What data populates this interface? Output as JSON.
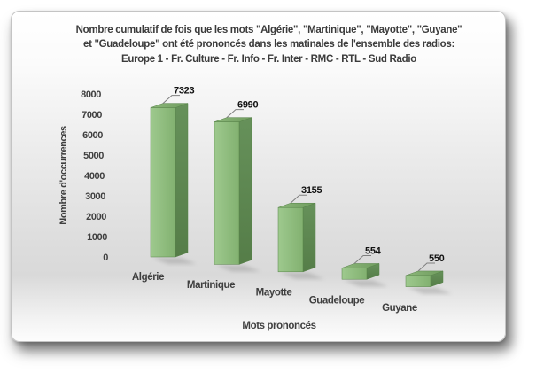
{
  "chart_data": {
    "type": "bar",
    "variant": "3d-column",
    "title_lines": [
      "Nombre cumulatif de fois que les mots \"Algérie\", \"Martinique\", \"Mayotte\", \"Guyane\"",
      "et \"Guadeloupe\" ont été prononcés dans les matinales de l'ensemble des radios:",
      "Europe 1 - Fr. Culture - Fr. Info - Fr. Inter - RMC - RTL - Sud Radio"
    ],
    "categories": [
      "Algérie",
      "Martinique",
      "Mayotte",
      "Guadeloupe",
      "Guyane"
    ],
    "values": [
      7323,
      6990,
      3155,
      554,
      550
    ],
    "xlabel": "Mots prononcés",
    "ylabel": "Nombre d'occurrences",
    "ylim": [
      0,
      8000
    ],
    "yticks": [
      0,
      1000,
      2000,
      3000,
      4000,
      5000,
      6000,
      7000,
      8000
    ],
    "grid": false,
    "legend": false,
    "colors": {
      "bar_front_light": "#9ec98e",
      "bar_front_dark": "#82b170",
      "bar_top_light": "#8cb77a",
      "bar_top_dark": "#6f9c5e",
      "bar_side_light": "#66915a",
      "bar_side_dark": "#557d48",
      "bar_edge": "#578349",
      "leader_line": "#7f7f7f",
      "axis_text": "#3f3f3f",
      "value_text": "#121212",
      "bar_shadow": "#8f8f8f"
    }
  }
}
